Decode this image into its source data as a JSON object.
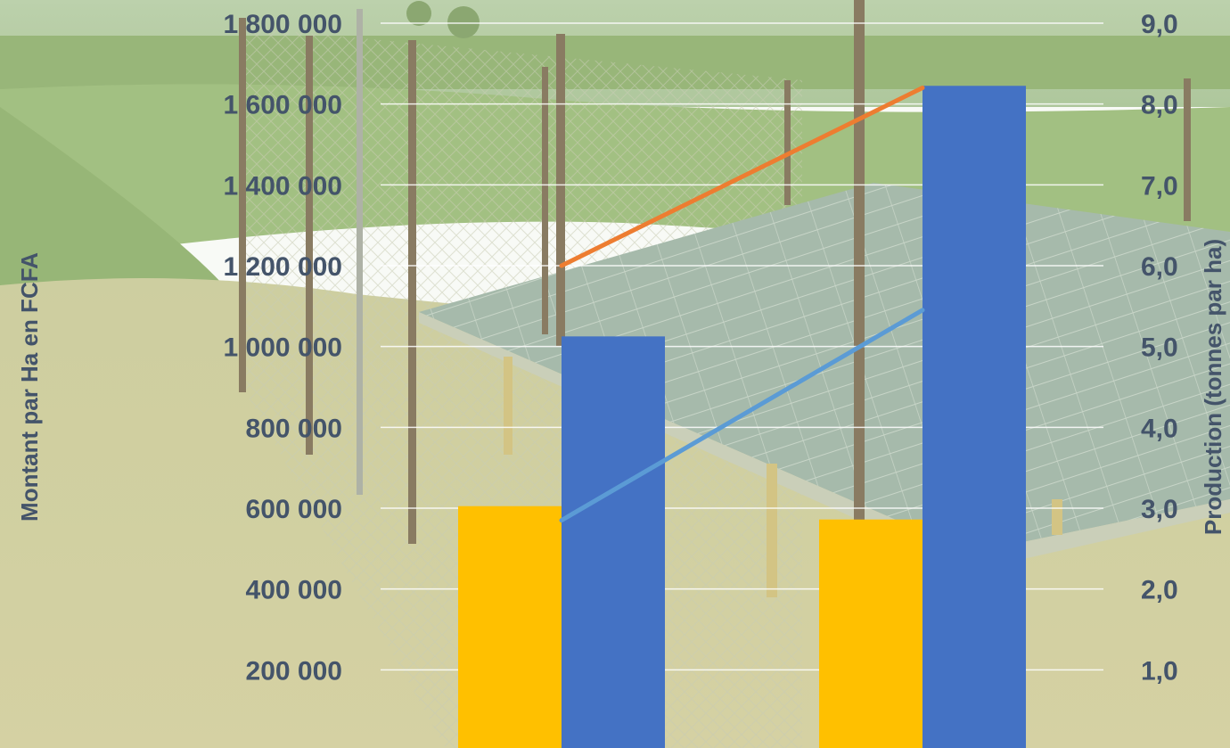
{
  "chart_data": {
    "type": "bar",
    "categories": [
      "",
      ""
    ],
    "left_axis": {
      "label": "Montant par Ha en FCFA",
      "range": [
        0,
        1800000
      ],
      "ticks": [
        "200 000",
        "400 000",
        "600 000",
        "800 000",
        "1 000 000",
        "1 200 000",
        "1 400 000",
        "1 600 000",
        "1 800 000"
      ],
      "tick_values": [
        200000,
        400000,
        600000,
        800000,
        1000000,
        1200000,
        1400000,
        1600000,
        1800000
      ]
    },
    "right_axis": {
      "label": "Production (tonnes par ha)",
      "range": [
        0,
        9
      ],
      "ticks": [
        "1,0",
        "2,0",
        "3,0",
        "4,0",
        "5,0",
        "6,0",
        "7,0",
        "8,0",
        "9,0"
      ],
      "tick_values": [
        1,
        2,
        3,
        4,
        5,
        6,
        7,
        8,
        9
      ]
    },
    "series": [
      {
        "type": "bar",
        "axis": "left",
        "color": "#FFC000",
        "values": [
          605000,
          572000
        ]
      },
      {
        "type": "bar",
        "axis": "left",
        "color": "#4472C4",
        "values": [
          1025000,
          1645000
        ]
      },
      {
        "type": "line",
        "axis": "right",
        "color": "#ED7D31",
        "values": [
          6.0,
          8.2
        ]
      },
      {
        "type": "line",
        "axis": "right",
        "color": "#5B9BD5",
        "values": [
          2.85,
          5.45
        ]
      }
    ],
    "grid": true,
    "legend": "none",
    "background": "photo of solar panels in a fenced field"
  }
}
